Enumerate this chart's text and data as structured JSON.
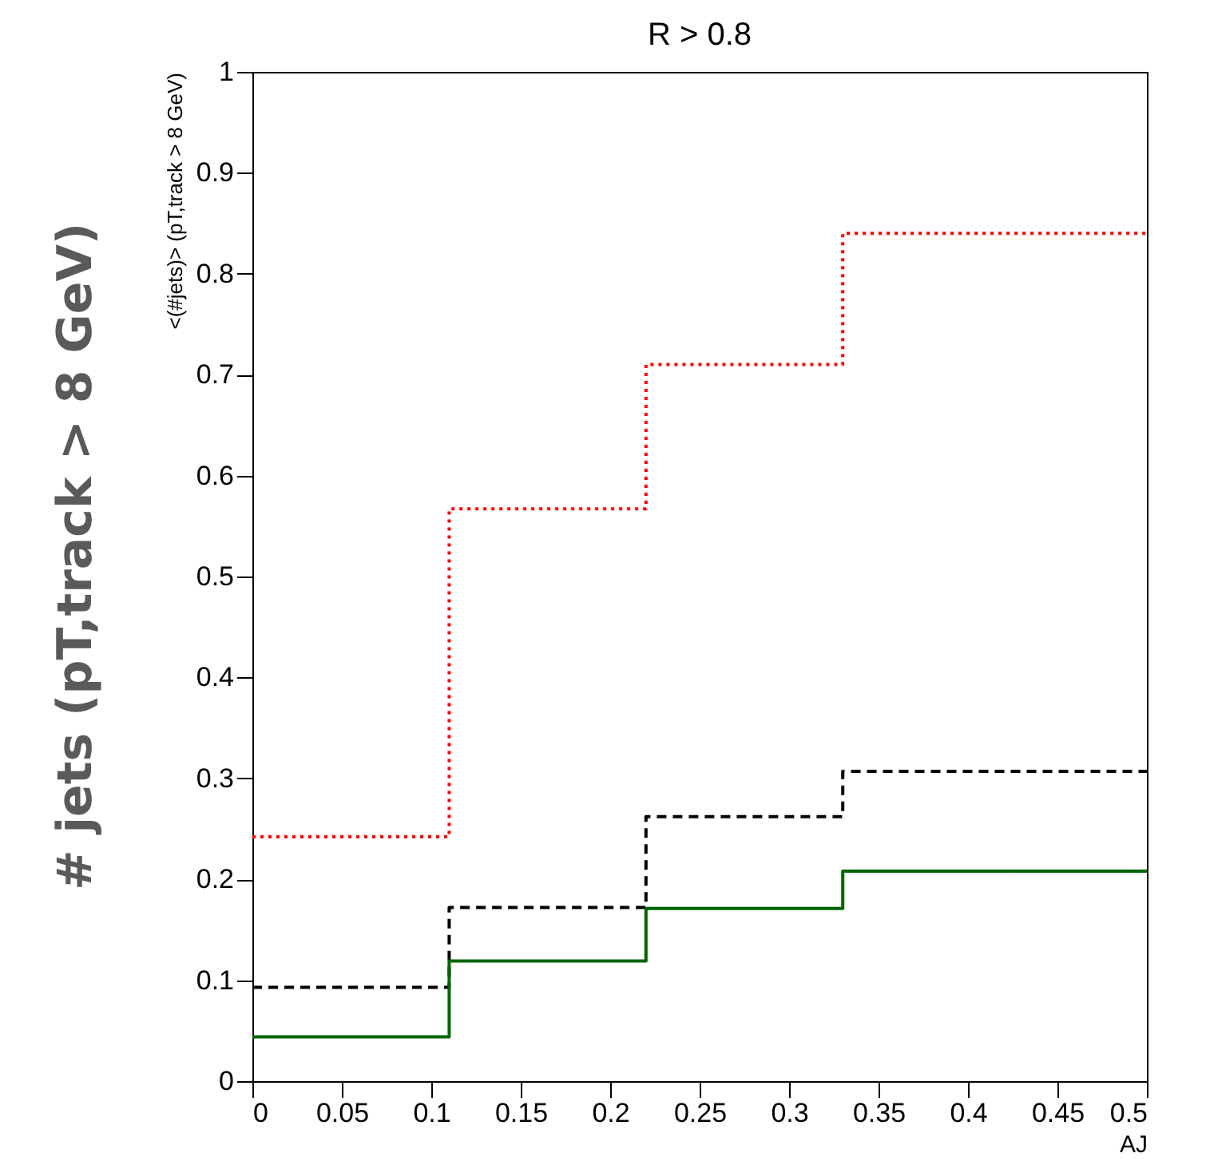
{
  "chart_data": {
    "type": "histogram",
    "title": "R > 0.8",
    "xlabel": "AJ",
    "ylabel": "<(#jets)> (pT,track > 8 GeV)",
    "bins": [
      0,
      0.11,
      0.22,
      0.33,
      0.5
    ],
    "series": [
      {
        "color": "#ff0000",
        "line_style": "dotted",
        "values": [
          0.242,
          0.567,
          0.71,
          0.84
        ]
      },
      {
        "color": "#000000",
        "line_style": "dashed",
        "values": [
          0.093,
          0.172,
          0.262,
          0.307
        ]
      },
      {
        "color": "#006400",
        "line_style": "solid",
        "values": [
          0.044,
          0.119,
          0.171,
          0.208
        ]
      }
    ],
    "xlim": [
      0,
      0.5
    ],
    "ylim": [
      0,
      1
    ],
    "xticks": [
      0,
      0.05,
      0.1,
      0.15,
      0.2,
      0.25,
      0.3,
      0.35,
      0.4,
      0.45,
      0.5
    ],
    "yticks": [
      0,
      0.1,
      0.2,
      0.3,
      0.4,
      0.5,
      0.6,
      0.7,
      0.8,
      0.9,
      1
    ],
    "grid": false,
    "legend": false,
    "annotations": [
      "# jets (pT,track > 8 GeV)"
    ]
  }
}
